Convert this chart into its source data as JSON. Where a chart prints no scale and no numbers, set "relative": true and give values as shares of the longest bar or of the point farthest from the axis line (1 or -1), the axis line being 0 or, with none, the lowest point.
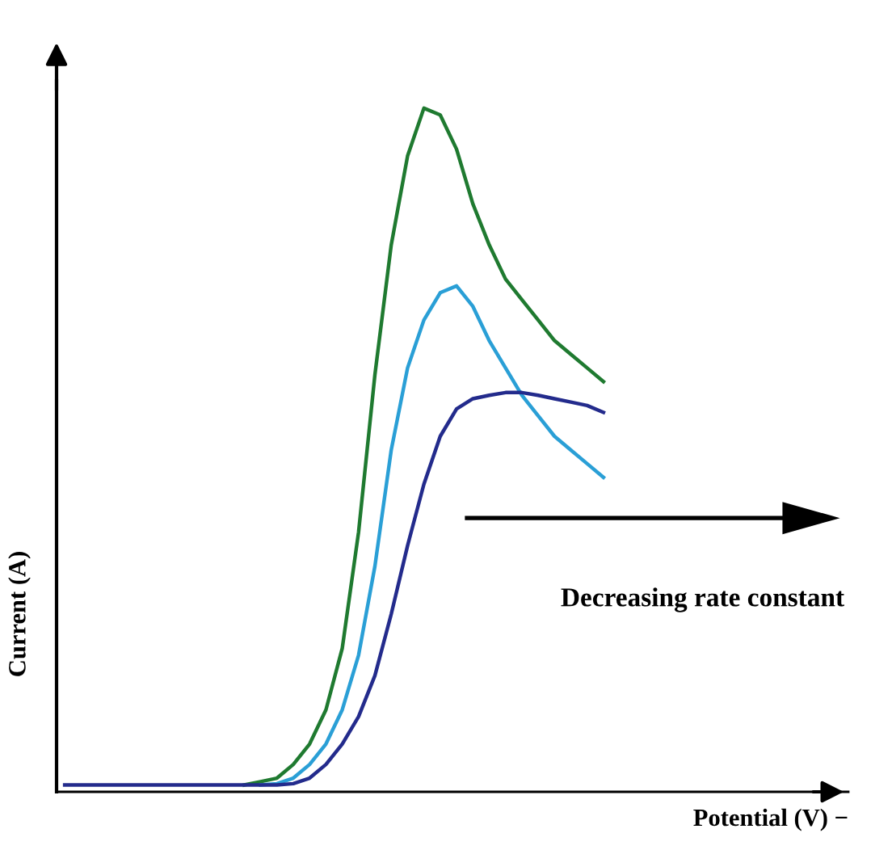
{
  "chart_data": {
    "type": "line",
    "relative": true,
    "xlabel": "Potential (V) −",
    "ylabel": "Current (A)",
    "categories": [
      null,
      null,
      null,
      null,
      null,
      null,
      null,
      null,
      null,
      null,
      null,
      null,
      null,
      null,
      null,
      null,
      null,
      null,
      null,
      null,
      null,
      null,
      null,
      null,
      null,
      null,
      null,
      null,
      null,
      null,
      null,
      null,
      null,
      null
    ],
    "series": [
      {
        "color": "#1f7a30",
        "values": [
          null,
          null,
          null,
          null,
          null,
          null,
          null,
          null,
          null,
          null,
          null,
          0.01,
          0.015,
          0.02,
          0.04,
          0.07,
          0.12,
          0.21,
          0.38,
          0.61,
          0.8,
          0.93,
          1.0,
          0.99,
          0.94,
          0.86,
          0.8,
          0.75,
          0.72,
          0.69,
          0.66,
          0.64,
          0.62,
          0.6
        ]
      },
      {
        "color": "#2a9fd6",
        "values": [
          null,
          null,
          null,
          null,
          null,
          null,
          null,
          null,
          null,
          null,
          null,
          null,
          0.01,
          0.012,
          0.02,
          0.04,
          0.07,
          0.12,
          0.2,
          0.33,
          0.5,
          0.62,
          0.69,
          0.73,
          0.74,
          0.71,
          0.66,
          0.62,
          0.58,
          0.55,
          0.52,
          0.5,
          0.48,
          0.46
        ]
      },
      {
        "color": "#232b8c",
        "values": [
          0.01,
          0.01,
          0.01,
          0.01,
          0.01,
          0.01,
          0.01,
          0.01,
          0.01,
          0.01,
          0.01,
          0.01,
          0.01,
          0.01,
          0.012,
          0.02,
          0.04,
          0.07,
          0.11,
          0.17,
          0.26,
          0.36,
          0.45,
          0.52,
          0.56,
          0.575,
          0.58,
          0.584,
          0.584,
          0.58,
          0.575,
          0.57,
          0.565,
          0.555
        ]
      }
    ],
    "annotations": [
      "Decreasing rate constant"
    ],
    "grid": false,
    "legend": false,
    "marker": "none",
    "line_style": "solid"
  }
}
